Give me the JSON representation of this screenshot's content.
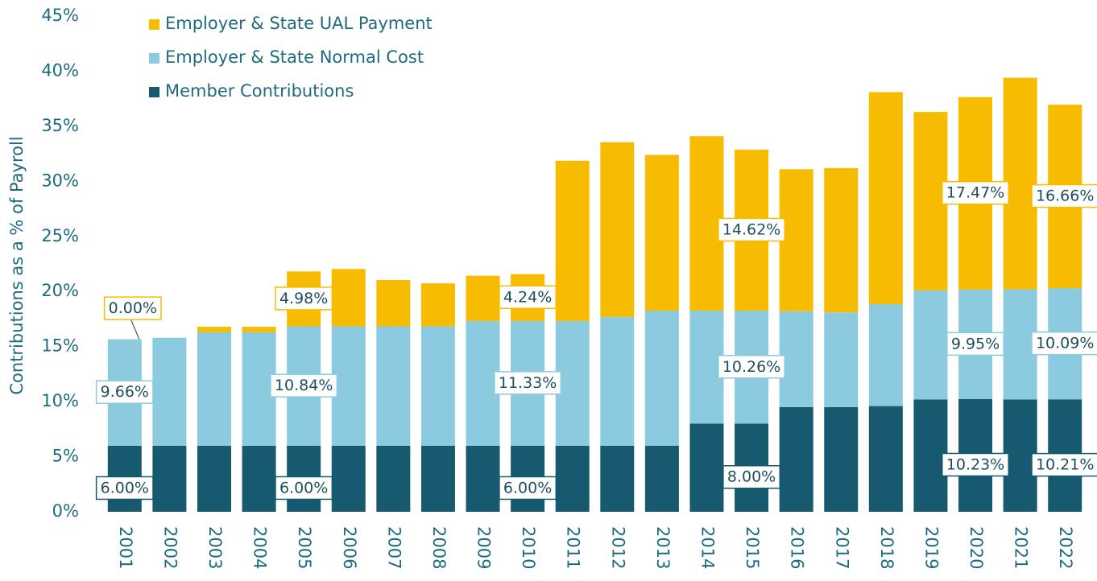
{
  "chart_data": {
    "type": "stacked_bar",
    "ylabel": "Contributions as a % of Payroll",
    "categories": [
      "2001",
      "2002",
      "2003",
      "2004",
      "2005",
      "2006",
      "2007",
      "2008",
      "2009",
      "2010",
      "2011",
      "2012",
      "2013",
      "2014",
      "2015",
      "2016",
      "2017",
      "2018",
      "2019",
      "2020",
      "2021",
      "2022"
    ],
    "series": [
      {
        "name": "Member Contributions",
        "color": "#175a6f",
        "values": [
          6,
          6,
          6,
          6,
          6,
          6,
          6,
          6,
          6,
          6,
          6,
          6,
          6,
          8,
          8,
          9.5,
          9.5,
          9.6,
          10.2,
          10.23,
          10.2,
          10.21
        ],
        "value_labels": [
          "6.00%",
          null,
          null,
          null,
          "6.00%",
          null,
          null,
          null,
          null,
          "6.00%",
          null,
          null,
          null,
          null,
          "8.00%",
          null,
          null,
          null,
          null,
          "10.23%",
          null,
          "10.21%"
        ]
      },
      {
        "name": "Employer & State Normal Cost",
        "color": "#8ccbdf",
        "values": [
          9.66,
          9.8,
          10.3,
          10.3,
          10.84,
          10.84,
          10.84,
          10.84,
          11.33,
          11.33,
          11.33,
          11.7,
          12.26,
          10.26,
          10.26,
          8.7,
          8.6,
          9.25,
          9.9,
          9.95,
          10,
          10.09
        ],
        "value_labels": [
          "9.66%",
          null,
          null,
          null,
          "10.84%",
          null,
          null,
          null,
          null,
          "11.33%",
          null,
          null,
          null,
          null,
          "10.26%",
          null,
          null,
          null,
          null,
          "9.95%",
          null,
          "10.09%"
        ]
      },
      {
        "name": "Employer & State UAL Payment",
        "color": "#f7bc00",
        "values": [
          0,
          0,
          0.5,
          0.5,
          4.98,
          5.2,
          4.2,
          3.9,
          4.1,
          4.24,
          14.54,
          15.85,
          14.14,
          15.84,
          14.62,
          12.9,
          13.1,
          19.25,
          16.2,
          17.47,
          19.2,
          16.66
        ],
        "value_labels": [
          "0.00%",
          null,
          null,
          null,
          "4.98%",
          null,
          null,
          null,
          null,
          "4.24%",
          null,
          null,
          null,
          null,
          "14.62%",
          null,
          null,
          null,
          null,
          "17.47%",
          null,
          "16.66%"
        ]
      }
    ],
    "ylim": [
      0,
      45
    ],
    "yticks": [
      {
        "value": 0,
        "label": "0%"
      },
      {
        "value": 5,
        "label": "5%"
      },
      {
        "value": 10,
        "label": "10%"
      },
      {
        "value": 15,
        "label": "15%"
      },
      {
        "value": 20,
        "label": "20%"
      },
      {
        "value": 25,
        "label": "25%"
      },
      {
        "value": 30,
        "label": "30%"
      },
      {
        "value": 35,
        "label": "35%"
      },
      {
        "value": 40,
        "label": "40%"
      },
      {
        "value": 45,
        "label": "45%"
      }
    ],
    "legend": "top-left"
  }
}
